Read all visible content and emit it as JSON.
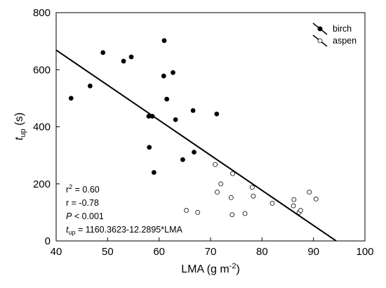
{
  "chart_data": {
    "type": "scatter",
    "xlabel": {
      "main": "LMA (g m",
      "sup": "-2",
      "close": ")"
    },
    "ylabel": {
      "t": "t",
      "sub": "up",
      "unit": " (s)"
    },
    "xlim": [
      40,
      100
    ],
    "ylim": [
      0,
      800
    ],
    "xticks": [
      "40",
      "50",
      "60",
      "70",
      "80",
      "90",
      "100"
    ],
    "yticks": [
      "0",
      "200",
      "400",
      "600",
      "800"
    ],
    "series": [
      {
        "name": "birch",
        "marker": "filled",
        "color": "#000000",
        "points": [
          {
            "x": 42.9,
            "y": 500
          },
          {
            "x": 46.6,
            "y": 543
          },
          {
            "x": 49.1,
            "y": 660
          },
          {
            "x": 53.1,
            "y": 630
          },
          {
            "x": 54.6,
            "y": 645
          },
          {
            "x": 58.0,
            "y": 437
          },
          {
            "x": 58.1,
            "y": 328
          },
          {
            "x": 58.7,
            "y": 437
          },
          {
            "x": 59.0,
            "y": 240
          },
          {
            "x": 60.9,
            "y": 578
          },
          {
            "x": 61.0,
            "y": 702
          },
          {
            "x": 61.5,
            "y": 497
          },
          {
            "x": 62.7,
            "y": 590
          },
          {
            "x": 63.2,
            "y": 425
          },
          {
            "x": 64.6,
            "y": 285
          },
          {
            "x": 66.6,
            "y": 457
          },
          {
            "x": 66.8,
            "y": 311
          },
          {
            "x": 71.2,
            "y": 445
          }
        ]
      },
      {
        "name": "aspen",
        "marker": "open",
        "color": "#000000",
        "points": [
          {
            "x": 65.3,
            "y": 107
          },
          {
            "x": 67.5,
            "y": 100
          },
          {
            "x": 70.9,
            "y": 268
          },
          {
            "x": 71.3,
            "y": 171
          },
          {
            "x": 72.0,
            "y": 200
          },
          {
            "x": 74.0,
            "y": 152
          },
          {
            "x": 74.2,
            "y": 92
          },
          {
            "x": 74.3,
            "y": 236
          },
          {
            "x": 76.7,
            "y": 96
          },
          {
            "x": 78.1,
            "y": 188
          },
          {
            "x": 78.3,
            "y": 157
          },
          {
            "x": 82.0,
            "y": 132
          },
          {
            "x": 86.1,
            "y": 123
          },
          {
            "x": 86.2,
            "y": 145
          },
          {
            "x": 87.2,
            "y": 100
          },
          {
            "x": 87.5,
            "y": 107
          },
          {
            "x": 89.2,
            "y": 171
          },
          {
            "x": 90.5,
            "y": 147
          }
        ]
      }
    ],
    "regression": {
      "intercept": 1160.3623,
      "slope": -12.2895,
      "x_range": [
        40,
        94.4
      ]
    },
    "annotations": {
      "r2_label": "r",
      "r2_sup": "2",
      "r2_value": " = 0.60",
      "r_line": "r = -0.78",
      "p_label": "P",
      "p_value": " < 0.001",
      "eq_t": "t",
      "eq_sub": "up",
      "eq_rest": " = 1160.3623-12.2895*LMA"
    },
    "legend": {
      "position": "top-right",
      "entries": [
        "birch",
        "aspen"
      ]
    },
    "grid": false
  }
}
